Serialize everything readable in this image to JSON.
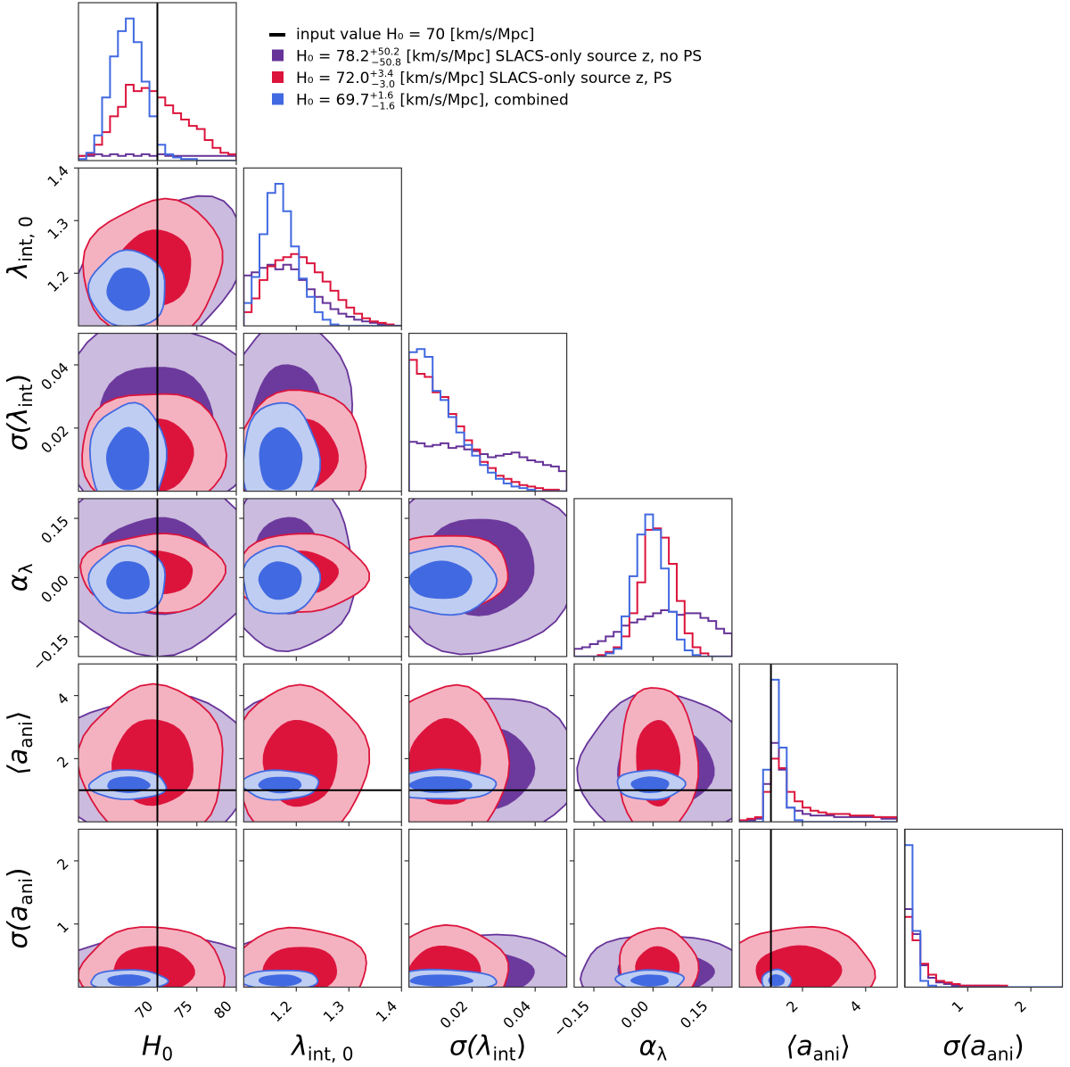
{
  "chart_data": {
    "type": "corner",
    "title": "",
    "parameters": [
      {
        "key": "H0",
        "label": "H",
        "sub": "0",
        "range": [
          60,
          80
        ],
        "ticks": [
          70,
          75,
          80
        ],
        "tick_labels": [
          "70",
          "75",
          "80"
        ],
        "truth": 70
      },
      {
        "key": "lambda_int_0",
        "label": "λ",
        "sub": "int, 0",
        "range": [
          1.1,
          1.4
        ],
        "ticks": [
          1.2,
          1.3,
          1.4
        ],
        "tick_labels": [
          "1.2",
          "1.3",
          "1.4"
        ],
        "truth": null
      },
      {
        "key": "sigma_lambda_int",
        "label": "σ(λ",
        "sub": "int",
        "suffix": ")",
        "range": [
          0.0,
          0.05
        ],
        "ticks": [
          0.02,
          0.04
        ],
        "tick_labels": [
          "0.02",
          "0.04"
        ],
        "truth": null
      },
      {
        "key": "alpha_lambda",
        "label": "α",
        "sub": "λ",
        "range": [
          -0.2,
          0.2
        ],
        "ticks": [
          -0.15,
          0.0,
          0.15
        ],
        "tick_labels": [
          "−0.15",
          "0.00",
          "0.15"
        ],
        "truth": null
      },
      {
        "key": "a_ani",
        "label": "⟨a",
        "sub": "ani",
        "suffix": "⟩",
        "range": [
          0.0,
          5.0
        ],
        "ticks": [
          2,
          4
        ],
        "tick_labels": [
          "2",
          "4"
        ],
        "truth": 1.0
      },
      {
        "key": "sigma_a_ani",
        "label": "σ(a",
        "sub": "ani",
        "suffix": ")",
        "range": [
          0.0,
          2.5
        ],
        "ticks": [
          1,
          2
        ],
        "tick_labels": [
          "1",
          "2"
        ],
        "truth": 0.0
      }
    ],
    "legend": {
      "placement": "top-right",
      "entries": [
        {
          "kind": "line",
          "color": "#000000",
          "text": "input value H₀ =  70 [km/s/Mpc]"
        },
        {
          "kind": "patch",
          "color": "#663399",
          "text_main": "H₀ = 78.2",
          "sup": "+50.2",
          "sub": "−50.8",
          "text_tail": " [km/s/Mpc] SLACS-only source z, no PS"
        },
        {
          "kind": "patch",
          "color": "#dc143c",
          "text_main": "H₀ = 72.0",
          "sup": "+3.4",
          "sub": "−3.0",
          "text_tail": " [km/s/Mpc] SLACS-only source z, PS"
        },
        {
          "kind": "patch",
          "color": "#4169e1",
          "text_main": "H₀ = 69.7",
          "sup": "+1.6",
          "sub": "−1.6",
          "text_tail": " [km/s/Mpc], combined"
        }
      ]
    },
    "series": [
      {
        "name": "SLACS-only source z, no PS",
        "color": "#663399",
        "light": "#cbbbde",
        "H0_median": 78.2,
        "H0_err_plus": 50.2,
        "H0_err_minus": 50.8,
        "marginal_hist": {
          "H0": [
            0.03,
            0.03,
            0.04,
            0.03,
            0.04,
            0.03,
            0.04,
            0.03,
            0.04,
            0.03,
            0.04,
            0.03,
            0.03,
            0.03,
            0.03,
            0.03,
            0.03,
            0.03,
            0.03,
            0.03
          ],
          "lambda_int_0": [
            0.33,
            0.35,
            0.38,
            0.4,
            0.37,
            0.4,
            0.37,
            0.3,
            0.24,
            0.19,
            0.15,
            0.11,
            0.08,
            0.06,
            0.04,
            0.03,
            0.02,
            0.01,
            0.0,
            0.0
          ],
          "sigma_lambda_int": [
            0.32,
            0.31,
            0.29,
            0.3,
            0.31,
            0.28,
            0.29,
            0.27,
            0.26,
            0.24,
            0.22,
            0.23,
            0.24,
            0.25,
            0.22,
            0.2,
            0.19,
            0.17,
            0.16,
            0.13
          ],
          "alpha_lambda": [
            0.05,
            0.06,
            0.08,
            0.1,
            0.13,
            0.16,
            0.2,
            0.22,
            0.24,
            0.26,
            0.28,
            0.3,
            0.29,
            0.27,
            0.28,
            0.28,
            0.25,
            0.23,
            0.18,
            0.15
          ],
          "a_ani": [
            0.0,
            0.01,
            0.02,
            0.24,
            0.5,
            0.33,
            0.09,
            0.07,
            0.05,
            0.04,
            0.04,
            0.04,
            0.03,
            0.03,
            0.03,
            0.03,
            0.03,
            0.03,
            0.02,
            0.02
          ],
          "sigma_a_ani": [
            0.5,
            0.34,
            0.14,
            0.06,
            0.03,
            0.02,
            0.01,
            0.01,
            0.01,
            0.01,
            0.01,
            0.01,
            0.0,
            0.0,
            0.0,
            0.0,
            0.0,
            0.0,
            0.0,
            0.0
          ]
        }
      },
      {
        "name": "SLACS-only source z, PS",
        "color": "#dc143c",
        "light": "#f4b2c0",
        "H0_median": 72.0,
        "H0_err_plus": 3.4,
        "H0_err_minus": 3.0,
        "marginal_hist": {
          "H0": [
            0.03,
            0.04,
            0.1,
            0.18,
            0.28,
            0.34,
            0.48,
            0.44,
            0.46,
            0.44,
            0.4,
            0.35,
            0.3,
            0.26,
            0.22,
            0.2,
            0.13,
            0.08,
            0.05,
            0.04
          ],
          "lambda_int_0": [
            0.09,
            0.18,
            0.3,
            0.39,
            0.43,
            0.45,
            0.47,
            0.45,
            0.41,
            0.35,
            0.29,
            0.23,
            0.17,
            0.12,
            0.08,
            0.05,
            0.03,
            0.02,
            0.01,
            0.0
          ],
          "sigma_lambda_int": [
            0.85,
            0.76,
            0.74,
            0.64,
            0.61,
            0.5,
            0.42,
            0.33,
            0.27,
            0.19,
            0.15,
            0.1,
            0.08,
            0.06,
            0.04,
            0.03,
            0.02,
            0.01,
            0.01,
            0.0
          ],
          "alpha_lambda": [
            0.0,
            0.0,
            0.0,
            0.01,
            0.03,
            0.06,
            0.13,
            0.28,
            0.48,
            0.82,
            0.83,
            0.77,
            0.6,
            0.36,
            0.15,
            0.06,
            0.02,
            0.0,
            0.0,
            0.0
          ],
          "a_ani": [
            0.01,
            0.02,
            0.03,
            0.19,
            0.4,
            0.34,
            0.19,
            0.13,
            0.09,
            0.07,
            0.06,
            0.05,
            0.05,
            0.05,
            0.04,
            0.04,
            0.04,
            0.03,
            0.03,
            0.03
          ],
          "sigma_a_ani": [
            0.45,
            0.3,
            0.15,
            0.08,
            0.04,
            0.03,
            0.02,
            0.01,
            0.01,
            0.01,
            0.01,
            0.01,
            0.01,
            0.0,
            0.0,
            0.0,
            0.0,
            0.0,
            0.0,
            0.0
          ]
        }
      },
      {
        "name": "combined",
        "color": "#4169e1",
        "light": "#bfcdf2",
        "H0_median": 69.7,
        "H0_err_plus": 1.6,
        "H0_err_minus": 1.6,
        "marginal_hist": {
          "H0": [
            0.01,
            0.05,
            0.16,
            0.4,
            0.66,
            0.82,
            0.9,
            0.75,
            0.5,
            0.28,
            0.1,
            0.04,
            0.02,
            0.01,
            0.01,
            0.0,
            0.0,
            0.0,
            0.0,
            0.0
          ],
          "lambda_int_0": [
            0.15,
            0.32,
            0.6,
            0.87,
            0.93,
            0.75,
            0.52,
            0.31,
            0.19,
            0.09,
            0.04,
            0.01,
            0.0,
            0.0,
            0.0,
            0.0,
            0.0,
            0.0,
            0.0,
            0.0
          ],
          "sigma_lambda_int": [
            0.9,
            0.92,
            0.87,
            0.65,
            0.59,
            0.48,
            0.38,
            0.3,
            0.23,
            0.17,
            0.12,
            0.08,
            0.05,
            0.03,
            0.02,
            0.01,
            0.0,
            0.0,
            0.0,
            0.0
          ],
          "alpha_lambda": [
            0.0,
            0.0,
            0.0,
            0.0,
            0.02,
            0.05,
            0.26,
            0.52,
            0.79,
            0.92,
            0.82,
            0.57,
            0.29,
            0.11,
            0.04,
            0.01,
            0.0,
            0.0,
            0.0,
            0.0
          ],
          "a_ani": [
            0.0,
            0.0,
            0.0,
            0.33,
            0.9,
            0.47,
            0.09,
            0.01,
            0.0,
            0.0,
            0.0,
            0.0,
            0.0,
            0.0,
            0.0,
            0.0,
            0.0,
            0.0,
            0.0,
            0.0
          ],
          "sigma_a_ani": [
            0.91,
            0.36,
            0.04,
            0.01,
            0.0,
            0.0,
            0.0,
            0.0,
            0.0,
            0.0,
            0.0,
            0.0,
            0.0,
            0.0,
            0.0,
            0.0,
            0.0,
            0.0,
            0.0,
            0.0
          ]
        }
      }
    ],
    "contour_levels": [
      "68%",
      "95%"
    ],
    "grid": false
  }
}
